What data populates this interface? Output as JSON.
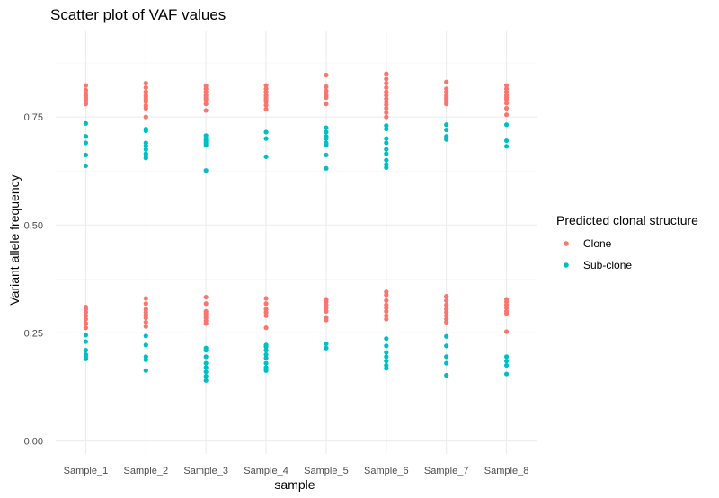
{
  "chart_data": {
    "type": "scatter",
    "title": "Scatter plot of VAF values",
    "xlabel": "sample",
    "ylabel": "Variant allele frequency",
    "categories": [
      "Sample_1",
      "Sample_2",
      "Sample_3",
      "Sample_4",
      "Sample_5",
      "Sample_6",
      "Sample_7",
      "Sample_8"
    ],
    "ylim": [
      -0.03,
      0.95
    ],
    "yticks": [
      0.0,
      0.25,
      0.5,
      0.75
    ],
    "ytick_labels": [
      "0.00",
      "0.25",
      "0.50",
      "0.75"
    ],
    "grid": true,
    "legend": {
      "title": "Predicted clonal structure",
      "position": "right"
    },
    "series": [
      {
        "name": "Clone",
        "color": "#F8766D",
        "points": {
          "Sample_1": [
            0.823,
            0.812,
            0.806,
            0.8,
            0.795,
            0.79,
            0.785,
            0.78,
            0.31,
            0.305,
            0.298,
            0.29,
            0.282,
            0.272,
            0.262
          ],
          "Sample_2": [
            0.828,
            0.818,
            0.808,
            0.8,
            0.795,
            0.79,
            0.785,
            0.776,
            0.77,
            0.75,
            0.33,
            0.318,
            0.305,
            0.298,
            0.292,
            0.285,
            0.275,
            0.265
          ],
          "Sample_3": [
            0.822,
            0.815,
            0.808,
            0.8,
            0.795,
            0.79,
            0.78,
            0.765,
            0.333,
            0.318,
            0.3,
            0.295,
            0.29,
            0.285,
            0.278,
            0.272
          ],
          "Sample_4": [
            0.823,
            0.815,
            0.808,
            0.8,
            0.795,
            0.79,
            0.785,
            0.777,
            0.768,
            0.33,
            0.318,
            0.305,
            0.298,
            0.29,
            0.262
          ],
          "Sample_5": [
            0.847,
            0.82,
            0.81,
            0.8,
            0.795,
            0.78,
            0.328,
            0.322,
            0.315,
            0.308,
            0.3,
            0.286,
            0.28
          ],
          "Sample_6": [
            0.85,
            0.838,
            0.828,
            0.818,
            0.808,
            0.8,
            0.792,
            0.785,
            0.778,
            0.77,
            0.76,
            0.75,
            0.345,
            0.338,
            0.325,
            0.315,
            0.308,
            0.3,
            0.29,
            0.282
          ],
          "Sample_7": [
            0.831,
            0.815,
            0.808,
            0.8,
            0.795,
            0.79,
            0.785,
            0.78,
            0.335,
            0.325,
            0.315,
            0.305,
            0.298,
            0.29,
            0.282,
            0.275
          ],
          "Sample_8": [
            0.823,
            0.815,
            0.808,
            0.8,
            0.795,
            0.79,
            0.782,
            0.77,
            0.755,
            0.328,
            0.322,
            0.315,
            0.308,
            0.3,
            0.295,
            0.253
          ]
        }
      },
      {
        "name": "Sub-clone",
        "color": "#00BFC4",
        "points": {
          "Sample_1": [
            0.735,
            0.705,
            0.69,
            0.662,
            0.637,
            0.245,
            0.23,
            0.21,
            0.2,
            0.195,
            0.19
          ],
          "Sample_2": [
            0.722,
            0.718,
            0.69,
            0.683,
            0.675,
            0.665,
            0.66,
            0.655,
            0.243,
            0.222,
            0.195,
            0.188,
            0.163
          ],
          "Sample_3": [
            0.707,
            0.7,
            0.695,
            0.69,
            0.685,
            0.626,
            0.215,
            0.21,
            0.195,
            0.18,
            0.17,
            0.16,
            0.15,
            0.14
          ],
          "Sample_4": [
            0.715,
            0.7,
            0.658,
            0.222,
            0.218,
            0.21,
            0.2,
            0.192,
            0.18,
            0.17,
            0.163
          ],
          "Sample_5": [
            0.725,
            0.715,
            0.705,
            0.7,
            0.69,
            0.685,
            0.662,
            0.631,
            0.225,
            0.215
          ],
          "Sample_6": [
            0.73,
            0.722,
            0.7,
            0.69,
            0.675,
            0.665,
            0.65,
            0.64,
            0.633,
            0.237,
            0.22,
            0.205,
            0.195,
            0.185,
            0.175,
            0.168
          ],
          "Sample_7": [
            0.732,
            0.72,
            0.705,
            0.698,
            0.242,
            0.22,
            0.195,
            0.18,
            0.152
          ],
          "Sample_8": [
            0.732,
            0.695,
            0.682,
            0.195,
            0.185,
            0.175,
            0.155
          ]
        }
      }
    ]
  }
}
